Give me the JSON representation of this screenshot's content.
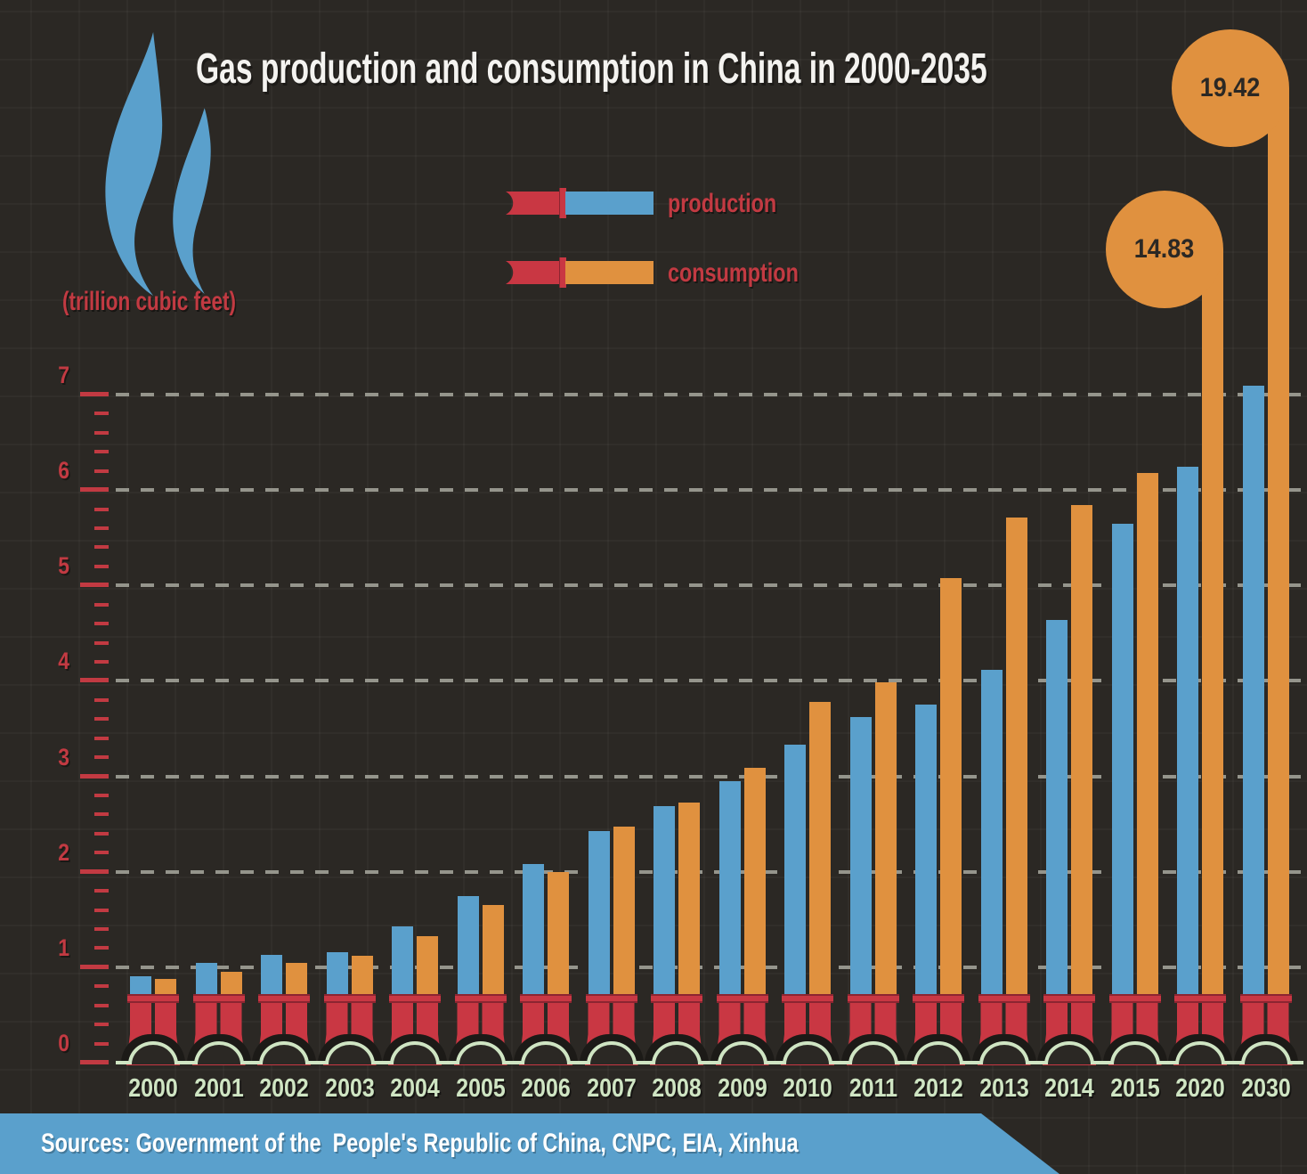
{
  "title": "Gas production and consumption in China in 2000-2035",
  "unit_label": "(trillion cubic feet)",
  "legend": {
    "items": [
      {
        "label": "production",
        "color": "#5aa0cc"
      },
      {
        "label": "consumption",
        "color": "#e0913f"
      }
    ]
  },
  "footer": {
    "source_text": "Sources: Government of the  People's Republic of China, CNPC, EIA, Xinhua"
  },
  "y_axis": {
    "min": 0,
    "max": 7,
    "major_step": 1,
    "minor_step": 0.2,
    "tick_labels": [
      "0",
      "1",
      "2",
      "3",
      "4",
      "5",
      "6",
      "7"
    ]
  },
  "colors": {
    "background": "#2b2824",
    "production_blue": "#5aa0cc",
    "consumption_orange": "#e0913f",
    "pipe_red": "#c93743",
    "axis_red": "#c23a42",
    "year_green": "#cfe5c3",
    "gridline_gray": "#95958c",
    "title_white": "#f4f3f0",
    "bubble_text_dark": "#2b2824",
    "footer_blue": "#5aa0cc"
  },
  "chart_data": {
    "type": "bar",
    "title": "Gas production and consumption in China in 2000-2035",
    "ylabel": "(trillion cubic feet)",
    "ylim": [
      0,
      7
    ],
    "grid": "dashed horizontal lines at integers 1-7",
    "legend_position": "top-center",
    "categories": [
      "2000",
      "2001",
      "2002",
      "2003",
      "2004",
      "2005",
      "2006",
      "2007",
      "2008",
      "2009",
      "2010",
      "2011",
      "2012",
      "2013",
      "2014",
      "2015",
      "2020",
      "2030"
    ],
    "series": [
      {
        "name": "production",
        "color": "#5aa0cc",
        "values": [
          0.91,
          1.05,
          1.13,
          1.16,
          1.43,
          1.75,
          2.08,
          2.43,
          2.69,
          2.95,
          3.33,
          3.62,
          3.75,
          4.12,
          4.64,
          5.65,
          6.24,
          7.09
        ]
      },
      {
        "name": "consumption",
        "color": "#e0913f",
        "values": [
          0.88,
          0.95,
          1.05,
          1.12,
          1.33,
          1.65,
          2.0,
          2.47,
          2.73,
          3.09,
          3.78,
          3.99,
          5.08,
          5.71,
          5.84,
          6.18,
          14.83,
          19.42
        ]
      }
    ],
    "callouts": [
      {
        "category": "2020",
        "series": "consumption",
        "value": 14.83,
        "label": "14.83"
      },
      {
        "category": "2030",
        "series": "consumption",
        "value": 19.42,
        "label": "19.42"
      }
    ]
  }
}
